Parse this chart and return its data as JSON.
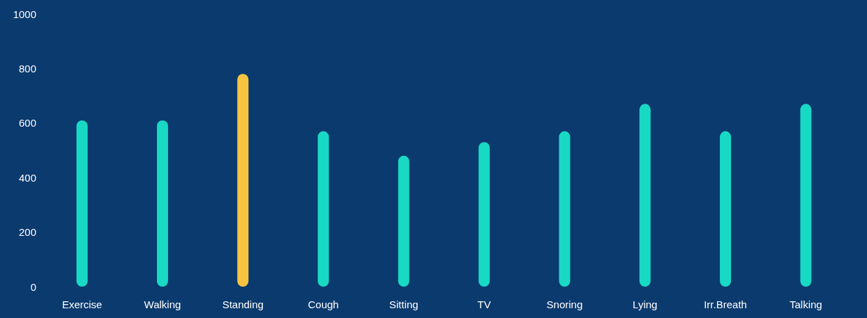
{
  "chart_data": {
    "type": "bar",
    "categories": [
      "Exercise",
      "Walking",
      "Standing",
      "Cough",
      "Sitting",
      "TV",
      "Snoring",
      "Lying",
      "Irr.Breath",
      "Talking"
    ],
    "values": [
      610,
      610,
      780,
      570,
      480,
      530,
      570,
      670,
      570,
      670
    ],
    "colors": [
      "#18d9c4",
      "#18d9c4",
      "#f7c440",
      "#18d9c4",
      "#18d9c4",
      "#18d9c4",
      "#18d9c4",
      "#18d9c4",
      "#18d9c4",
      "#18d9c4"
    ],
    "ylim": [
      0,
      1000
    ],
    "yticks": [
      0,
      200,
      400,
      600,
      800,
      1000
    ]
  }
}
